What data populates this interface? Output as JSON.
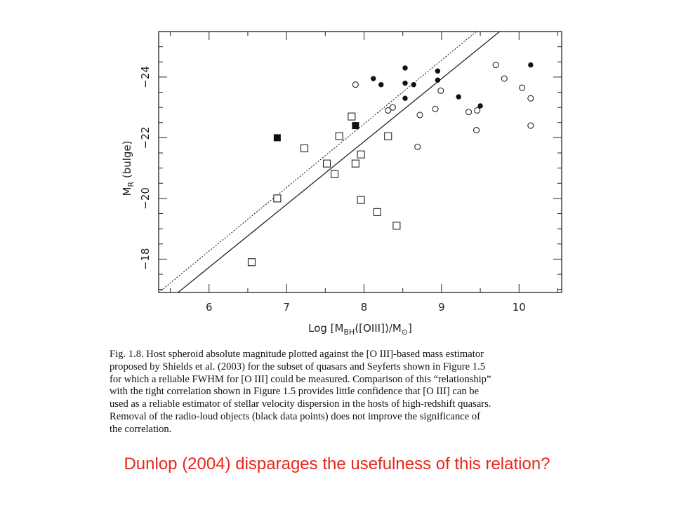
{
  "chart_data": {
    "type": "scatter",
    "xlabel": "Log [M_BH([OIII])/M_⊙]",
    "ylabel": "M_R (bulge)",
    "xlim": [
      5.35,
      10.55
    ],
    "ylim": [
      -16.9,
      -25.5
    ],
    "y_inverted": true,
    "x_ticks": [
      "6",
      "7",
      "8",
      "9",
      "10"
    ],
    "y_ticks": [
      "−18",
      "−20",
      "−22",
      "−24"
    ],
    "grid": false,
    "series": [
      {
        "marker": "open-square",
        "points": [
          [
            6.55,
            -17.9
          ],
          [
            6.88,
            -20.0
          ],
          [
            7.23,
            -21.65
          ],
          [
            7.52,
            -21.15
          ],
          [
            7.62,
            -20.8
          ],
          [
            7.68,
            -22.05
          ],
          [
            7.84,
            -22.7
          ],
          [
            7.89,
            -21.15
          ],
          [
            7.96,
            -21.45
          ],
          [
            7.96,
            -19.95
          ],
          [
            8.17,
            -19.55
          ],
          [
            8.31,
            -22.05
          ],
          [
            8.42,
            -19.1
          ]
        ]
      },
      {
        "marker": "filled-square",
        "points": [
          [
            6.88,
            -22.0
          ],
          [
            7.89,
            -22.4
          ]
        ]
      },
      {
        "marker": "open-circle",
        "points": [
          [
            7.89,
            -23.75
          ],
          [
            8.31,
            -22.9
          ],
          [
            8.37,
            -23.0
          ],
          [
            8.69,
            -21.7
          ],
          [
            8.72,
            -22.75
          ],
          [
            8.92,
            -22.95
          ],
          [
            8.99,
            -23.55
          ],
          [
            9.35,
            -22.85
          ],
          [
            9.45,
            -22.25
          ],
          [
            9.46,
            -22.9
          ],
          [
            9.7,
            -24.4
          ],
          [
            9.81,
            -23.95
          ],
          [
            10.04,
            -23.65
          ],
          [
            10.15,
            -23.3
          ],
          [
            10.15,
            -22.4
          ]
        ]
      },
      {
        "marker": "filled-circle",
        "points": [
          [
            8.12,
            -23.95
          ],
          [
            8.22,
            -23.75
          ],
          [
            8.53,
            -24.3
          ],
          [
            8.53,
            -23.8
          ],
          [
            8.53,
            -23.3
          ],
          [
            8.64,
            -23.75
          ],
          [
            8.95,
            -24.2
          ],
          [
            8.95,
            -23.9
          ],
          [
            9.22,
            -23.35
          ],
          [
            9.5,
            -23.05
          ],
          [
            10.15,
            -24.4
          ]
        ]
      }
    ],
    "lines": [
      {
        "style": "solid",
        "points": [
          [
            5.6,
            -16.9
          ],
          [
            9.75,
            -25.5
          ]
        ]
      },
      {
        "style": "dotted",
        "points": [
          [
            5.35,
            -16.9
          ],
          [
            9.45,
            -25.5
          ]
        ]
      }
    ]
  },
  "caption": {
    "lines": [
      "Fig. 1.8.  Host spheroid absolute magnitude plotted against the [O III]-based mass estimator",
      "proposed by Shields et al. (2003) for the subset of quasars and Seyferts shown in Figure 1.5",
      "for which a reliable FWHM for [O III] could be measured. Comparison of this “relationship”",
      "with the tight correlation shown in Figure 1.5 provides little confidence that [O III] can be",
      "used as a reliable estimator of stellar velocity dispersion in the hosts of high-redshift quasars.",
      "Removal of the radio-loud objects (black data points) does not improve the significance of",
      "the correlation."
    ]
  },
  "slide_text": "Dunlop (2004) disparages  the usefulness of this relation?"
}
